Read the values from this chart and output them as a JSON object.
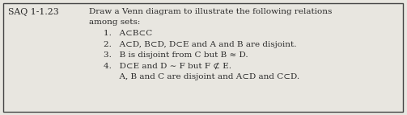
{
  "label": "SAQ 1-1.23",
  "line1": "Draw a Venn diagram to illustrate the following relations",
  "line2": "among sets:",
  "items": [
    "1.   A⊂B⊂C",
    "2.   A⊂D, B⊂D, D⊂E and A and B are disjoint.",
    "3.   B is disjoint from C but B ≈ D.",
    "4.   D⊂E and D ∼ F but F ⊄ E.",
    "      A, B and C are disjoint and A⊂D and C⊂D."
  ],
  "bg_color": "#e8e6e0",
  "border_color": "#444444",
  "text_color": "#2a2a2a",
  "label_fontsize": 7.8,
  "body_fontsize": 7.5,
  "figwidth": 5.03,
  "figheight": 1.43,
  "dpi": 100
}
